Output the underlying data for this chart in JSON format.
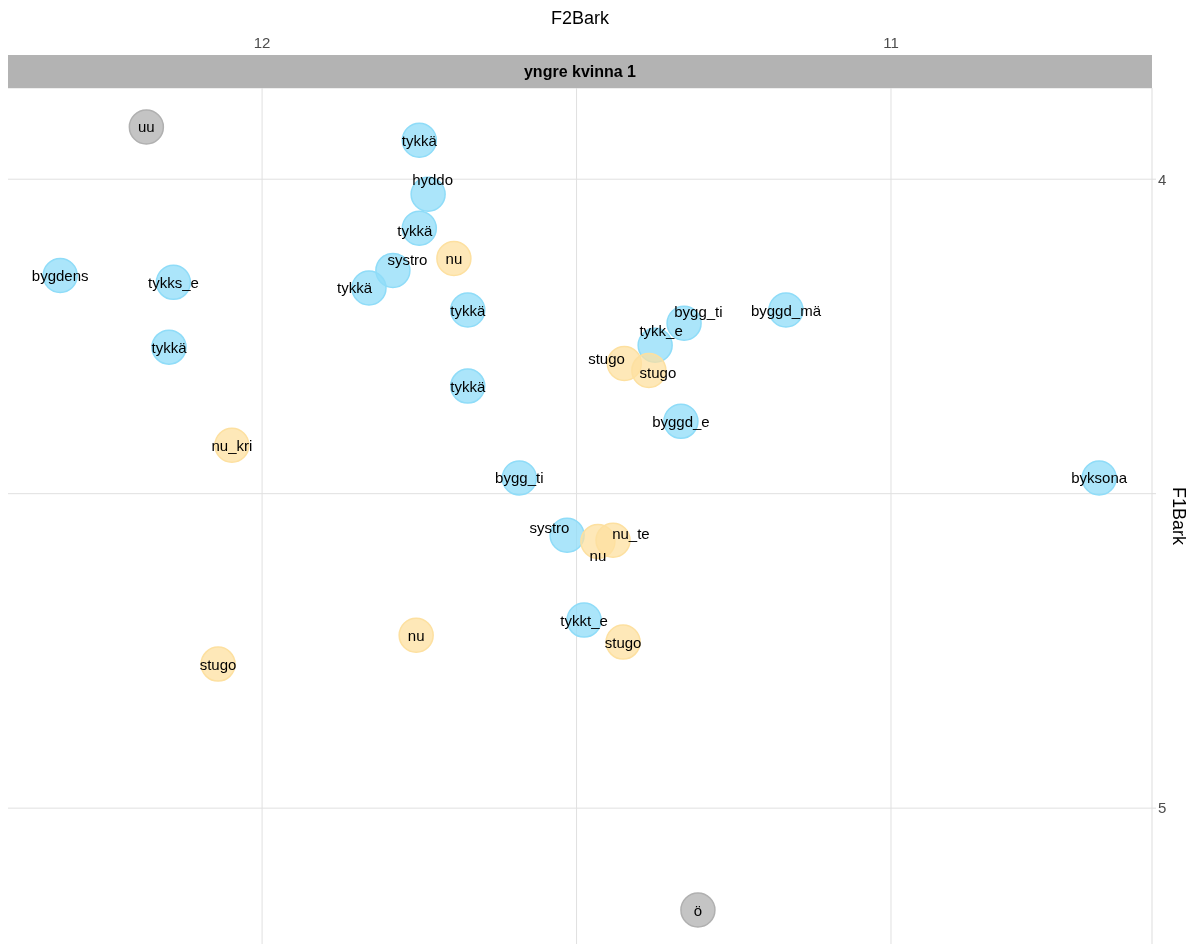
{
  "chart_data": {
    "type": "scatter",
    "title": "yngre kvinna 1",
    "xlabel": "F2Bark",
    "ylabel": "F1Bark",
    "xlim": [
      12.404,
      10.585
    ],
    "ylim": [
      5.216,
      3.855
    ],
    "xticks": [
      12,
      {
        "value": 11.5,
        "label": null
      },
      11
    ],
    "yticks": [
      4,
      {
        "value": 4.5,
        "label": null
      },
      5
    ],
    "grid": true,
    "marker": "circle",
    "data_labels": false,
    "series": [
      {
        "color": "#8fdcf8",
        "x": [
          11.75,
          11.736,
          11.75,
          11.792,
          11.83,
          11.673,
          11.673,
          12.321,
          12.141,
          12.148,
          11.329,
          11.375,
          11.167,
          11.334,
          11.591,
          10.669,
          11.515,
          11.488
        ],
        "values": [
          3.938,
          4.024,
          4.078,
          4.145,
          4.173,
          4.208,
          4.329,
          4.153,
          4.164,
          4.267,
          4.229,
          4.264,
          4.208,
          4.385,
          4.475,
          4.475,
          4.566,
          4.701
        ],
        "value_labels": [
          "tykkä",
          "hyddo",
          "tykkä",
          "systro",
          "tykkä",
          "tykkä",
          "tykkä",
          "bygdens",
          "tykks_e",
          "tykkä",
          "bygg_ti",
          "tykk_e",
          "byggd_mä",
          "byggd_e",
          "bygg_ti",
          "byksona",
          "systro",
          "tykkt_e"
        ]
      },
      {
        "color": "#fde0a0",
        "x": [
          11.695,
          11.424,
          11.385,
          12.048,
          11.466,
          11.442,
          11.755,
          11.426,
          12.07
        ],
        "values": [
          4.126,
          4.293,
          4.304,
          4.423,
          4.576,
          4.574,
          4.725,
          4.736,
          4.771
        ],
        "value_labels": [
          "nu",
          "stugo",
          "stugo",
          "nu_kri",
          "nu",
          "nu_te",
          "nu",
          "stugo",
          "stugo"
        ]
      },
      {
        "color": "#b0b0b0",
        "x": [
          12.184,
          11.307
        ],
        "values": [
          3.917,
          5.162
        ],
        "value_labels": [
          "uu",
          "ö"
        ]
      }
    ]
  }
}
